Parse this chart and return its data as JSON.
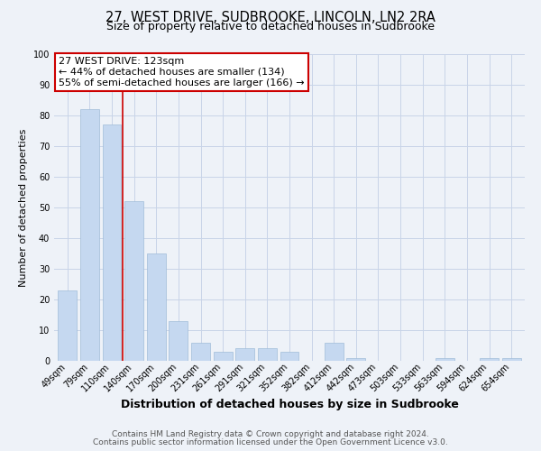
{
  "title": "27, WEST DRIVE, SUDBROOKE, LINCOLN, LN2 2RA",
  "subtitle": "Size of property relative to detached houses in Sudbrooke",
  "xlabel": "Distribution of detached houses by size in Sudbrooke",
  "ylabel": "Number of detached properties",
  "categories": [
    "49sqm",
    "79sqm",
    "110sqm",
    "140sqm",
    "170sqm",
    "200sqm",
    "231sqm",
    "261sqm",
    "291sqm",
    "321sqm",
    "352sqm",
    "382sqm",
    "412sqm",
    "442sqm",
    "473sqm",
    "503sqm",
    "533sqm",
    "563sqm",
    "594sqm",
    "624sqm",
    "654sqm"
  ],
  "values": [
    23,
    82,
    77,
    52,
    35,
    13,
    6,
    3,
    4,
    4,
    3,
    0,
    6,
    1,
    0,
    0,
    0,
    1,
    0,
    1,
    1
  ],
  "bar_color": "#c5d8f0",
  "bar_edge_color": "#a0bcd8",
  "ylim": [
    0,
    100
  ],
  "yticks": [
    0,
    10,
    20,
    30,
    40,
    50,
    60,
    70,
    80,
    90,
    100
  ],
  "red_line_x": 2.5,
  "red_line_color": "#cc0000",
  "annotation_title": "27 WEST DRIVE: 123sqm",
  "annotation_line1": "← 44% of detached houses are smaller (134)",
  "annotation_line2": "55% of semi-detached houses are larger (166) →",
  "annotation_box_color": "#ffffff",
  "annotation_box_edge": "#cc0000",
  "footer1": "Contains HM Land Registry data © Crown copyright and database right 2024.",
  "footer2": "Contains public sector information licensed under the Open Government Licence v3.0.",
  "bg_color": "#eef2f8",
  "plot_bg_color": "#eef2f8",
  "grid_color": "#c8d4e8",
  "title_fontsize": 10.5,
  "subtitle_fontsize": 9,
  "xlabel_fontsize": 9,
  "ylabel_fontsize": 8,
  "tick_fontsize": 7,
  "footer_fontsize": 6.5,
  "ann_fontsize": 8
}
